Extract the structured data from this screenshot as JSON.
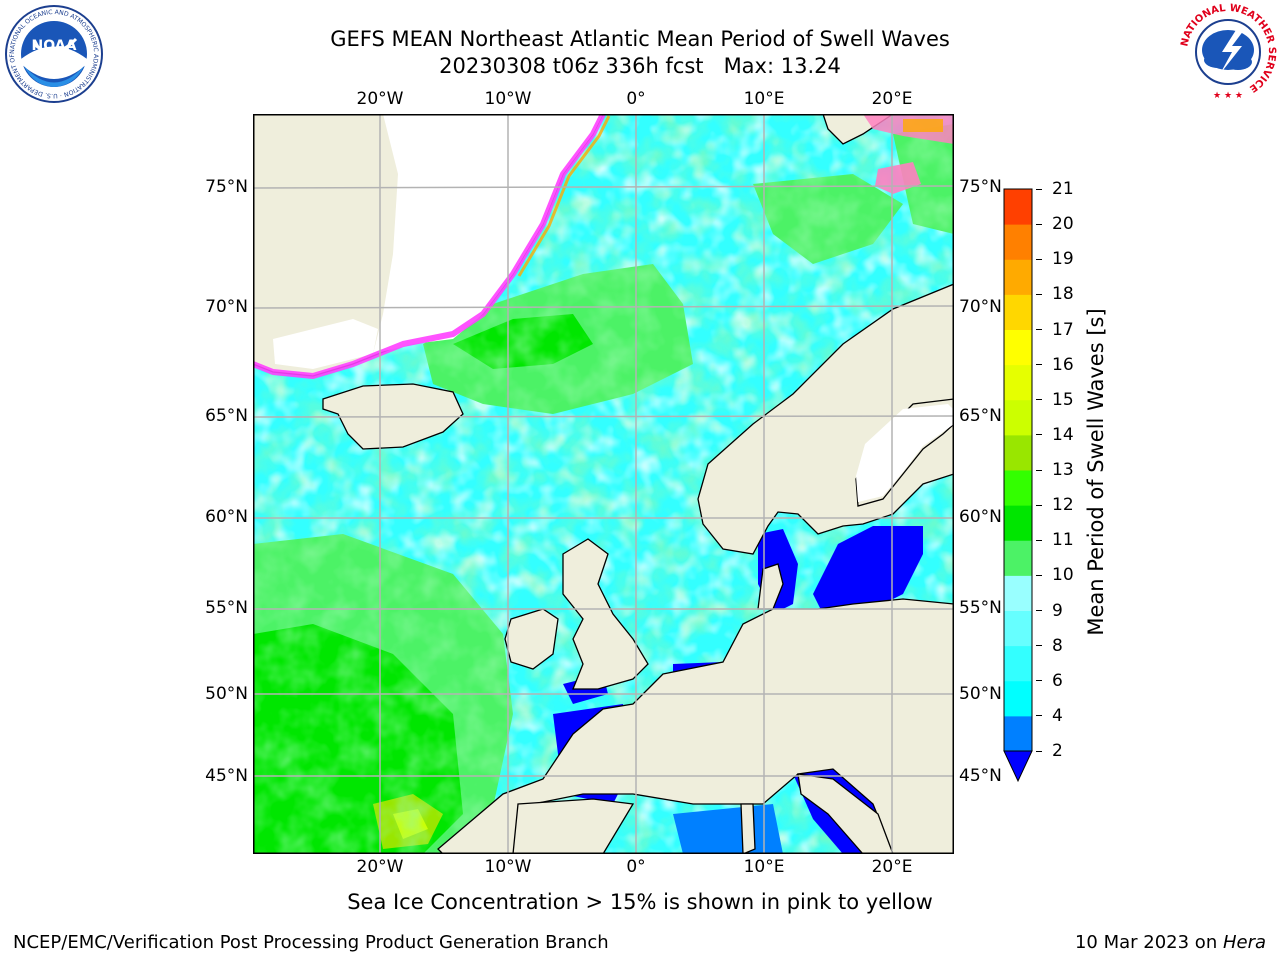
{
  "title": {
    "line1": "GEFS MEAN Northeast Atlantic Mean Period of Swell Waves",
    "line2": "20230308 t06z 336h fcst   Max: 13.24"
  },
  "logos": {
    "noaa": {
      "text": "NOAA",
      "ring_text": "NATIONAL OCEANIC AND ATMOSPHERIC ADMINISTRATION · U.S. DEPARTMENT OF COMMERCE ·"
    },
    "nws": {
      "ring_text": "NATIONAL WEATHER SERVICE"
    }
  },
  "map": {
    "lon_ticks_top": [
      "20°W",
      "10°W",
      "0°",
      "10°E",
      "20°E"
    ],
    "lon_ticks_bottom": [
      "20°W",
      "10°W",
      "0°",
      "10°E",
      "20°E"
    ],
    "lat_ticks_left": [
      "75°N",
      "70°N",
      "65°N",
      "60°N",
      "55°N",
      "50°N",
      "45°N"
    ],
    "lat_ticks_right": [
      "75°N",
      "70°N",
      "65°N",
      "60°N",
      "55°N",
      "50°N",
      "45°N"
    ],
    "colors": {
      "land": "#efeedc",
      "ocean_low": "#33ffff",
      "ocean_mid": "#99ffff",
      "ocean_high": "#4cf266",
      "ocean_max": "#00e600",
      "sheltered": "#0000ff",
      "grid": "#b3b3b3",
      "ice_edge": "#ff40ff"
    }
  },
  "colorbar": {
    "label": "Mean Period of Swell Waves [s]",
    "ticks": [
      "2",
      "4",
      "6",
      "8",
      "9",
      "10",
      "11",
      "12",
      "13",
      "14",
      "15",
      "16",
      "17",
      "18",
      "19",
      "20",
      "21"
    ],
    "colors": [
      "#0080ff",
      "#00ffff",
      "#33ffff",
      "#66ffff",
      "#99ffff",
      "#4cf266",
      "#00e600",
      "#33ff00",
      "#99e600",
      "#ccff00",
      "#e6ff00",
      "#ffff00",
      "#ffd700",
      "#ffaa00",
      "#ff8000",
      "#ff4000",
      "#ff0000"
    ],
    "under_color": "#0000ff"
  },
  "note": "Sea Ice Concentration > 15% is shown in pink to yellow",
  "footer": {
    "left": "NCEP/EMC/Verification Post Processing Product Generation Branch",
    "right_date": "10 Mar 2023 on ",
    "right_machine": "Hera"
  }
}
